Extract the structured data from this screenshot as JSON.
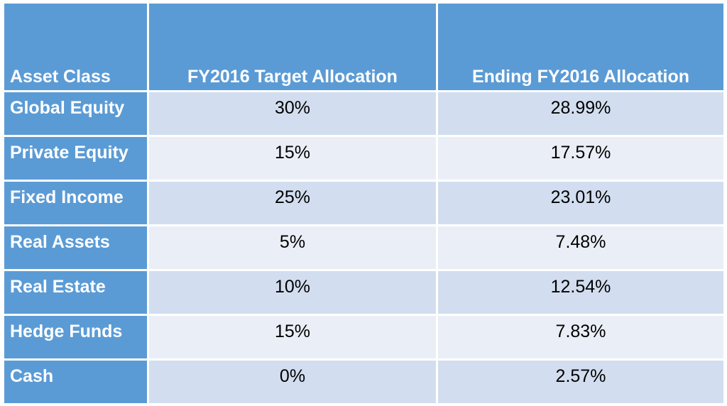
{
  "table": {
    "headers": [
      "Asset Class",
      "FY2016 Target Allocation",
      "Ending FY2016 Allocation"
    ],
    "rows": [
      {
        "asset_class": "Global Equity",
        "target": "30%",
        "ending": "28.99%"
      },
      {
        "asset_class": "Private Equity",
        "target": "15%",
        "ending": "17.57%"
      },
      {
        "asset_class": "Fixed Income",
        "target": "25%",
        "ending": "23.01%"
      },
      {
        "asset_class": "Real Assets",
        "target": "5%",
        "ending": "7.48%"
      },
      {
        "asset_class": "Real Estate",
        "target": "10%",
        "ending": "12.54%"
      },
      {
        "asset_class": "Hedge Funds",
        "target": "15%",
        "ending": "7.83%"
      },
      {
        "asset_class": "Cash",
        "target": "0%",
        "ending": "2.57%"
      }
    ]
  },
  "colors": {
    "header_blue": "#5b9bd5",
    "row_band_dark": "#d2deef",
    "row_band_light": "#eaeff7"
  }
}
